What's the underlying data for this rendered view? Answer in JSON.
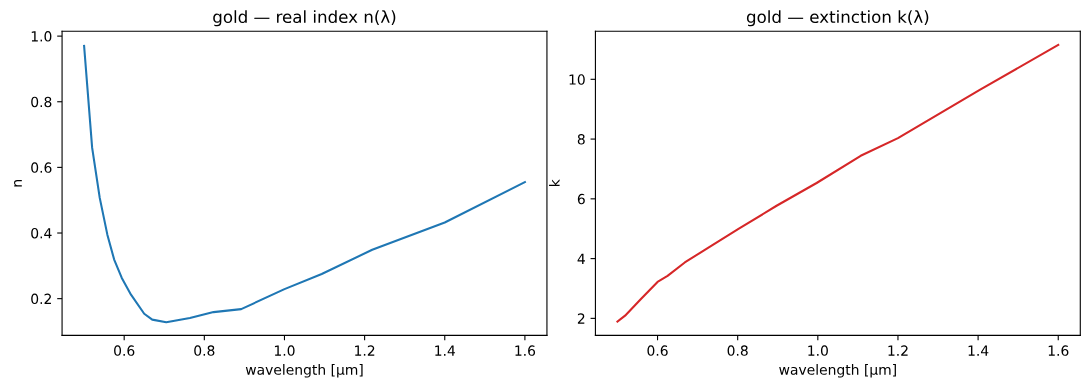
{
  "chart_data": [
    {
      "type": "line",
      "title": "gold — real index n(λ)",
      "xlabel": "wavelength [µm]",
      "ylabel": "n",
      "xlim": [
        0.445,
        1.655
      ],
      "xticks": [
        {
          "value": 0.6,
          "label": "0.6"
        },
        {
          "value": 0.8,
          "label": "0.8"
        },
        {
          "value": 1.0,
          "label": "1.0"
        },
        {
          "value": 1.2,
          "label": "1.2"
        },
        {
          "value": 1.4,
          "label": "1.4"
        },
        {
          "value": 1.6,
          "label": "1.6"
        }
      ],
      "ylim": [
        0.088,
        1.015
      ],
      "yticks": [
        {
          "value": 0.2,
          "label": "0.2"
        },
        {
          "value": 0.4,
          "label": "0.4"
        },
        {
          "value": 0.6,
          "label": "0.6"
        },
        {
          "value": 0.8,
          "label": "0.8"
        },
        {
          "value": 1.0,
          "label": "1.0"
        }
      ],
      "grid": false,
      "legend": false,
      "series": [
        {
          "color": "#1f77b4",
          "x": [
            0.5,
            0.52,
            0.539,
            0.558,
            0.575,
            0.594,
            0.617,
            0.65,
            0.67,
            0.705,
            0.764,
            0.823,
            0.892,
            1.0,
            1.093,
            1.219,
            1.4,
            1.6
          ],
          "values": [
            0.97,
            0.66,
            0.507,
            0.395,
            0.319,
            0.263,
            0.212,
            0.154,
            0.136,
            0.128,
            0.141,
            0.159,
            0.168,
            0.229,
            0.275,
            0.349,
            0.432,
            0.555
          ]
        }
      ]
    },
    {
      "type": "line",
      "title": "gold — extinction k(λ)",
      "xlabel": "wavelength [µm]",
      "ylabel": "k",
      "xlim": [
        0.445,
        1.655
      ],
      "xticks": [
        {
          "value": 0.6,
          "label": "0.6"
        },
        {
          "value": 0.8,
          "label": "0.8"
        },
        {
          "value": 1.0,
          "label": "1.0"
        },
        {
          "value": 1.2,
          "label": "1.2"
        },
        {
          "value": 1.4,
          "label": "1.4"
        },
        {
          "value": 1.6,
          "label": "1.6"
        }
      ],
      "ylim": [
        1.43,
        11.61
      ],
      "yticks": [
        2,
        4,
        6,
        8,
        10
      ],
      "grid": false,
      "legend": false,
      "series": [
        {
          "color": "#d62728",
          "x": [
            0.5,
            0.519,
            0.558,
            0.6,
            0.625,
            0.668,
            0.727,
            0.803,
            0.896,
            0.997,
            1.107,
            1.2,
            1.403,
            1.6
          ],
          "values": [
            1.89,
            2.09,
            2.64,
            3.22,
            3.42,
            3.87,
            4.37,
            5.0,
            5.76,
            6.53,
            7.44,
            8.03,
            9.64,
            11.15
          ]
        }
      ]
    }
  ]
}
